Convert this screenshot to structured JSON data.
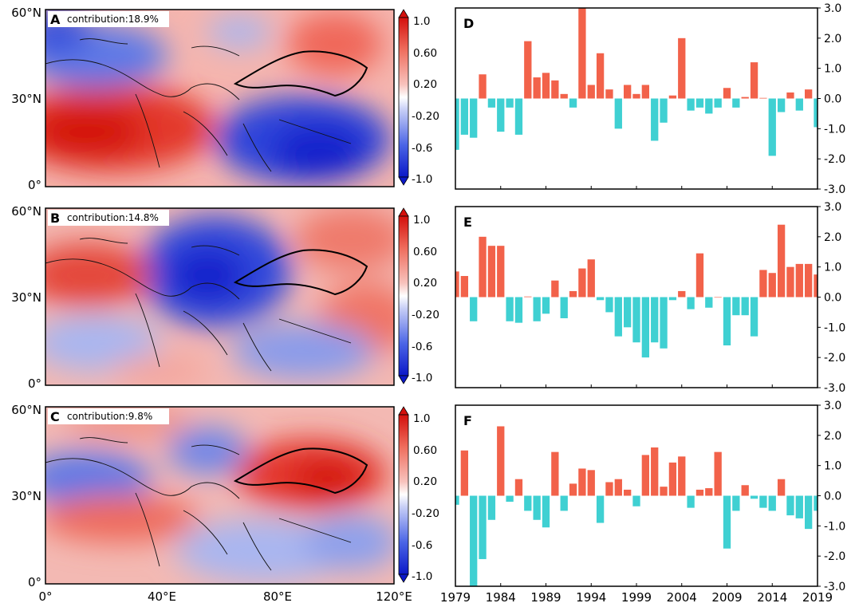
{
  "map_panels": [
    {
      "label": "A",
      "contribution": "contribution:18.9%"
    },
    {
      "label": "B",
      "contribution": "contribution:14.8%"
    },
    {
      "label": "C",
      "contribution": "contribution:9.8%"
    }
  ],
  "map_axes": {
    "lat_ticks": [
      "0°",
      "30°N",
      "60°N"
    ],
    "lon_ticks": [
      "0°",
      "40°E",
      "80°E",
      "120°E"
    ]
  },
  "colorbar": {
    "ticks": [
      "1.0",
      "0.60",
      "0.20",
      "-0.20",
      "-0.6",
      "-1.0"
    ],
    "range": [
      -1.0,
      1.0
    ],
    "low_color": "#1a2ad4",
    "high_color": "#e0221c"
  },
  "colors": {
    "positive": "#f2624a",
    "negative": "#3fd0d2"
  },
  "chart_data": [
    {
      "type": "bar",
      "panel": "D",
      "x": [
        1979,
        1980,
        1981,
        1982,
        1983,
        1984,
        1985,
        1986,
        1987,
        1988,
        1989,
        1990,
        1991,
        1992,
        1993,
        1994,
        1995,
        1996,
        1997,
        1998,
        1999,
        2000,
        2001,
        2002,
        2003,
        2004,
        2005,
        2006,
        2007,
        2008,
        2009,
        2010,
        2011,
        2012,
        2013,
        2014,
        2015,
        2016,
        2017,
        2018,
        2019
      ],
      "values": [
        -1.7,
        -1.2,
        -1.3,
        0.8,
        -0.3,
        -1.1,
        -0.3,
        -1.2,
        1.9,
        0.7,
        0.85,
        0.6,
        0.15,
        -0.3,
        3.3,
        0.45,
        1.5,
        0.3,
        -1.0,
        0.45,
        0.15,
        0.45,
        -1.4,
        -0.8,
        0.1,
        2.0,
        -0.4,
        -0.3,
        -0.5,
        -0.3,
        0.35,
        -0.3,
        0.05,
        1.2,
        0.02,
        -1.9,
        -0.45,
        0.2,
        -0.4,
        0.3,
        -0.95
      ],
      "xticks": [
        "1979",
        "1984",
        "1989",
        "1994",
        "1999",
        "2004",
        "2009",
        "2014",
        "2019"
      ],
      "yticks": [
        "3.0",
        "2.0",
        "1.0",
        "0.0",
        "-1.0",
        "-2.0",
        "-3.0"
      ],
      "ylim": [
        -3.0,
        3.0
      ]
    },
    {
      "type": "bar",
      "panel": "E",
      "x": [
        1979,
        1980,
        1981,
        1982,
        1983,
        1984,
        1985,
        1986,
        1987,
        1988,
        1989,
        1990,
        1991,
        1992,
        1993,
        1994,
        1995,
        1996,
        1997,
        1998,
        1999,
        2000,
        2001,
        2002,
        2003,
        2004,
        2005,
        2006,
        2007,
        2008,
        2009,
        2010,
        2011,
        2012,
        2013,
        2014,
        2015,
        2016,
        2017,
        2018,
        2019
      ],
      "values": [
        0.85,
        0.7,
        -0.8,
        2.0,
        1.7,
        1.7,
        -0.8,
        -0.85,
        0.02,
        -0.8,
        -0.55,
        0.55,
        -0.7,
        0.2,
        0.95,
        1.25,
        -0.1,
        -0.5,
        -1.3,
        -1.0,
        -1.5,
        -2.0,
        -1.5,
        -1.7,
        -0.1,
        0.2,
        -0.4,
        1.45,
        -0.35,
        0.0,
        -1.6,
        -0.6,
        -0.6,
        -1.3,
        0.9,
        0.8,
        2.4,
        1.0,
        1.1,
        1.1,
        0.75
      ],
      "xticks": [
        "1979",
        "1984",
        "1989",
        "1994",
        "1999",
        "2004",
        "2009",
        "2014",
        "2019"
      ],
      "yticks": [
        "3.0",
        "2.0",
        "1.0",
        "0.0",
        "-1.0",
        "-2.0",
        "-3.0"
      ],
      "ylim": [
        -3.0,
        3.0
      ]
    },
    {
      "type": "bar",
      "panel": "F",
      "x": [
        1979,
        1980,
        1981,
        1982,
        1983,
        1984,
        1985,
        1986,
        1987,
        1988,
        1989,
        1990,
        1991,
        1992,
        1993,
        1994,
        1995,
        1996,
        1997,
        1998,
        1999,
        2000,
        2001,
        2002,
        2003,
        2004,
        2005,
        2006,
        2007,
        2008,
        2009,
        2010,
        2011,
        2012,
        2013,
        2014,
        2015,
        2016,
        2017,
        2018,
        2019
      ],
      "values": [
        -0.3,
        1.5,
        -3.3,
        -2.1,
        -0.8,
        2.3,
        -0.2,
        0.55,
        -0.5,
        -0.8,
        -1.05,
        1.45,
        -0.5,
        0.4,
        0.9,
        0.85,
        -0.9,
        0.45,
        0.55,
        0.2,
        -0.35,
        1.35,
        1.6,
        0.3,
        1.1,
        1.3,
        -0.4,
        0.2,
        0.25,
        1.45,
        -1.75,
        -0.5,
        0.35,
        -0.1,
        -0.4,
        -0.5,
        0.55,
        -0.65,
        -0.75,
        -1.1,
        -0.5
      ],
      "xticks": [
        "1979",
        "1984",
        "1989",
        "1994",
        "1999",
        "2004",
        "2009",
        "2014",
        "2019"
      ],
      "yticks": [
        "3.0",
        "2.0",
        "1.0",
        "0.0",
        "-1.0",
        "-2.0",
        "-3.0"
      ],
      "ylim": [
        -3.0,
        3.0
      ]
    }
  ]
}
